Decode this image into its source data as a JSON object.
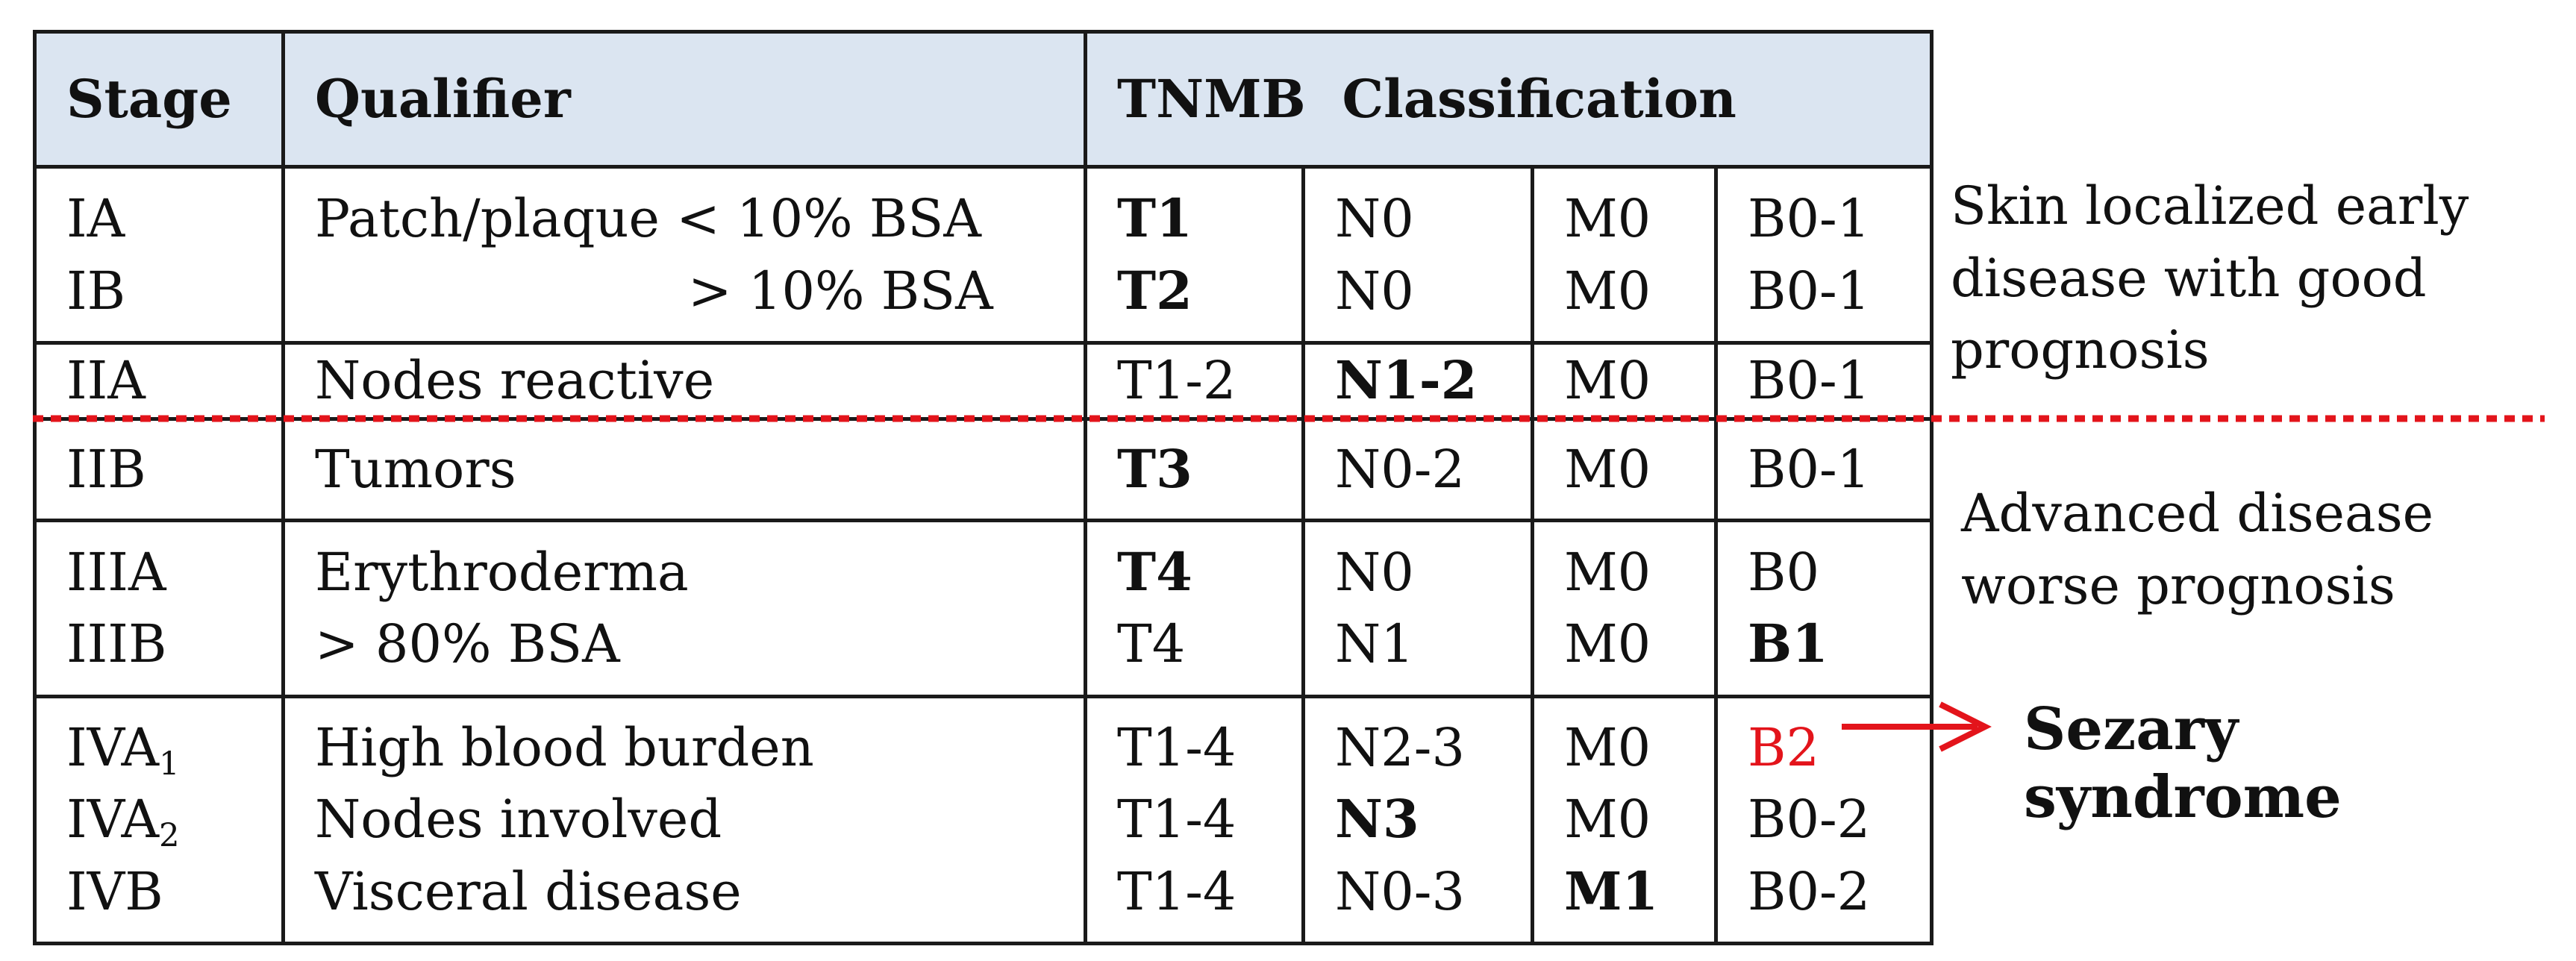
{
  "header": {
    "stage": "Stage",
    "qualifier": "Qualifier",
    "classification": "TNMB  Classification"
  },
  "rows": {
    "r1": {
      "stage": [
        "IA",
        "IB"
      ],
      "qualifier": [
        "Patch/plaque < 10% BSA",
        "> 10% BSA"
      ],
      "t": [
        "T1",
        "T2"
      ],
      "n": [
        "N0",
        "N0"
      ],
      "m": [
        "M0",
        "M0"
      ],
      "b": [
        "B0-1",
        "B0-1"
      ]
    },
    "r2": {
      "stage": "IIA",
      "qualifier": "Nodes reactive",
      "t": "T1-2",
      "n": "N1-2",
      "m": "M0",
      "b": "B0-1"
    },
    "r3": {
      "stage": "IIB",
      "qualifier": "Tumors",
      "t": "T3",
      "n": "N0-2",
      "m": "M0",
      "b": "B0-1"
    },
    "r4": {
      "stage": [
        "IIIA",
        "IIIB"
      ],
      "qualifier": [
        "Erythroderma",
        "> 80% BSA"
      ],
      "t": [
        "T4",
        "T4"
      ],
      "n": [
        "N0",
        "N1"
      ],
      "m": [
        "M0",
        "M0"
      ],
      "b": [
        "B0",
        "B1"
      ]
    },
    "r5": {
      "stage_base": [
        "IVA",
        "IVA",
        "IVB"
      ],
      "stage_sub": [
        "1",
        "2"
      ],
      "qualifier": [
        "High blood burden",
        "Nodes involved",
        "Visceral disease"
      ],
      "t": [
        "T1-4",
        "T1-4",
        "T1-4"
      ],
      "n": [
        "N2-3",
        "N3",
        "N0-3"
      ],
      "m": [
        "M0",
        "M0",
        "M1"
      ],
      "b": [
        "B2",
        "B0-2",
        "B0-2"
      ]
    }
  },
  "notes": {
    "early": [
      "Skin localized early",
      "disease with good",
      "prognosis"
    ],
    "advanced": [
      "Advanced disease",
      "worse prognosis"
    ],
    "sezary": "Sezary syndrome"
  },
  "colors": {
    "header_bg": "#dbe5f1",
    "accent_red": "#e3141b",
    "border": "#1a1a1a"
  }
}
